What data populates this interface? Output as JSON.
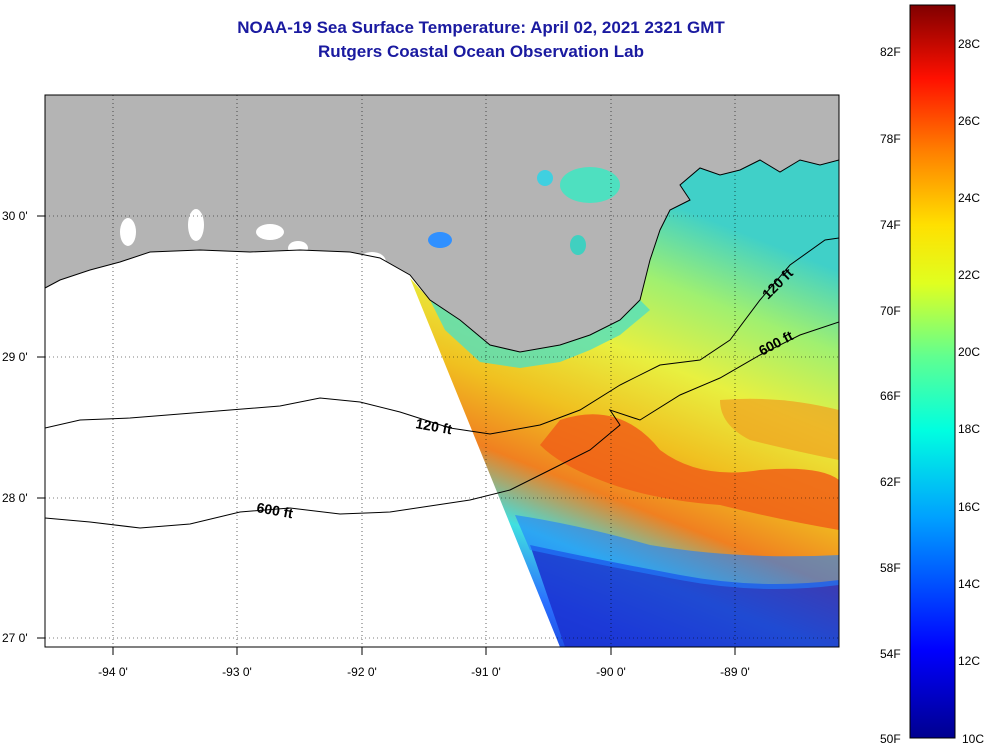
{
  "title": "NOAA-19 Sea Surface Temperature:  April 02, 2021 2321 GMT",
  "subtitle": "Rutgers Coastal Ocean Observation Lab",
  "map": {
    "longitude_labels": [
      "-94 0'",
      "-93 0'",
      "-92 0'",
      "-91 0'",
      "-90 0'",
      "-89 0'"
    ],
    "latitude_labels": [
      "30 0'",
      "29 0'",
      "28 0'",
      "27 0'"
    ],
    "contour_labels": [
      "120 ft",
      "600 ft",
      "120 ft",
      "600 ft"
    ],
    "land_color": "#b4b4b4",
    "nodata_color": "#ffffff"
  },
  "colorbar": {
    "fahrenheit_labels": [
      "82F",
      "78F",
      "74F",
      "70F",
      "66F",
      "62F",
      "58F",
      "54F",
      "50F"
    ],
    "celsius_labels": [
      "28C",
      "26C",
      "24C",
      "22C",
      "20C",
      "18C",
      "16C",
      "14C",
      "12C",
      "10C"
    ],
    "range_celsius": [
      10,
      29
    ]
  }
}
